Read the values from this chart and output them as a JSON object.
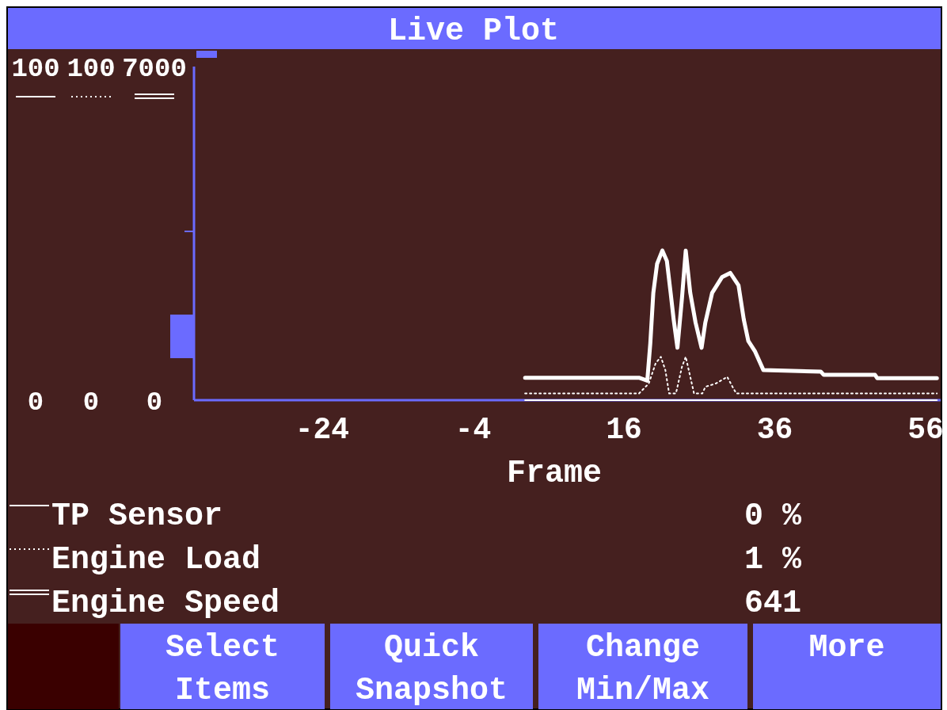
{
  "chart_data": {
    "type": "line",
    "title": "Live Plot",
    "xlabel": "Frame",
    "xlim": [
      -41,
      58
    ],
    "xticks": [
      -24,
      -4,
      16,
      36,
      56
    ],
    "ylim": [
      0,
      100
    ],
    "yticks": [
      0,
      100
    ],
    "y2lim": [
      0,
      100
    ],
    "y2ticks": [
      0,
      100
    ],
    "y3lim": [
      0,
      7000
    ],
    "y3ticks": [
      0,
      7000
    ],
    "legend": "bottom",
    "series": [
      {
        "name": "TP Sensor",
        "color": "#ffffff",
        "axis": "y",
        "line_style": "solid",
        "x": [
          2.9,
          57.5
        ],
        "values": [
          0,
          0
        ]
      },
      {
        "name": "Engine Load",
        "color": "#ffffff",
        "axis": "y2",
        "line_style": "dotted",
        "x": [
          2.9,
          18.0,
          19.3,
          20.2,
          20.9,
          21.5,
          22.0,
          22.9,
          23.7,
          24.2,
          24.8,
          25.3,
          26.4,
          26.8,
          28.2,
          29.7,
          30.4,
          30.9,
          57.5
        ],
        "values": [
          2,
          2,
          5,
          11,
          13,
          9,
          2,
          2,
          10,
          13,
          7,
          2,
          2,
          4,
          5,
          7,
          4,
          2,
          2
        ]
      },
      {
        "name": "Engine Speed",
        "color": "#ffffff",
        "axis": "y3",
        "line_style": "solid",
        "x": [
          2.9,
          18.0,
          19.1,
          19.5,
          19.9,
          20.4,
          21.1,
          21.7,
          22.2,
          22.6,
          23.1,
          23.7,
          24.2,
          24.8,
          25.5,
          26.3,
          26.8,
          27.7,
          29.0,
          30.1,
          31.2,
          31.9,
          32.5,
          33.4,
          34.5,
          42.1,
          42.5,
          49.3,
          49.6,
          57.5
        ],
        "values": [
          470,
          470,
          410,
          1190,
          2250,
          2860,
          3140,
          2920,
          2250,
          1690,
          1100,
          2140,
          3140,
          2250,
          1630,
          1100,
          1630,
          2250,
          2580,
          2670,
          2410,
          1690,
          1240,
          1020,
          630,
          600,
          530,
          530,
          460,
          460
        ]
      }
    ],
    "annotations": [
      "0 %",
      "1 %",
      "641",
      "Select Items",
      "Quick Snapshot",
      "Change Min/Max",
      "More"
    ]
  }
}
